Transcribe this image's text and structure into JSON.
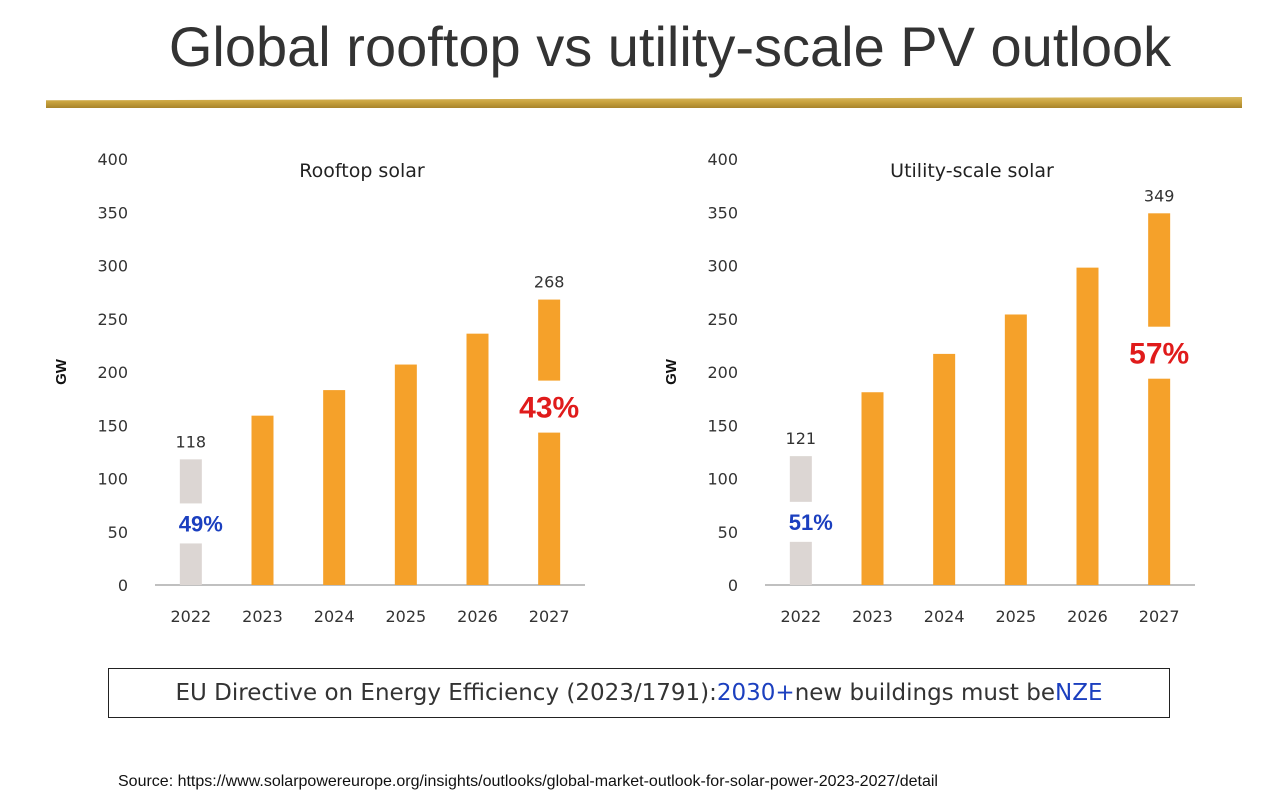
{
  "title": "Global rooftop vs utility-scale PV outlook",
  "colors": {
    "bar_forecast": "#f5a12a",
    "bar_base": "#dcd6d3",
    "pct_red": "#e01b1b",
    "pct_blue": "#1b3fbf",
    "rule": "#c9a33e"
  },
  "chart_data": [
    {
      "type": "bar",
      "title": "Rooftop solar",
      "ylabel": "GW",
      "xlabel": "",
      "ylim": [
        0,
        400
      ],
      "yticks": [
        0,
        50,
        100,
        150,
        200,
        250,
        300,
        350,
        400
      ],
      "categories": [
        "2022",
        "2023",
        "2024",
        "2025",
        "2026",
        "2027"
      ],
      "values": [
        118,
        159,
        183,
        207,
        236,
        268
      ],
      "data_labels": {
        "2022": "118",
        "2027": "268"
      },
      "annotations": {
        "base_share": "49%",
        "end_share": "43%"
      },
      "grid": false
    },
    {
      "type": "bar",
      "title": "Utility-scale solar",
      "ylabel": "GW",
      "xlabel": "",
      "ylim": [
        0,
        400
      ],
      "yticks": [
        0,
        50,
        100,
        150,
        200,
        250,
        300,
        350,
        400
      ],
      "categories": [
        "2022",
        "2023",
        "2024",
        "2025",
        "2026",
        "2027"
      ],
      "values": [
        121,
        181,
        217,
        254,
        298,
        349
      ],
      "data_labels": {
        "2022": "121",
        "2027": "349"
      },
      "annotations": {
        "base_share": "51%",
        "end_share": "57%"
      },
      "grid": false
    }
  ],
  "directive": {
    "prefix": "EU Directive on Energy Efficiency (2023/1791): ",
    "year": "2030+",
    "middle": " new buildings must be ",
    "nze": "NZE"
  },
  "source": "Source: https://www.solarpowereurope.org/insights/outlooks/global-market-outlook-for-solar-power-2023-2027/detail"
}
